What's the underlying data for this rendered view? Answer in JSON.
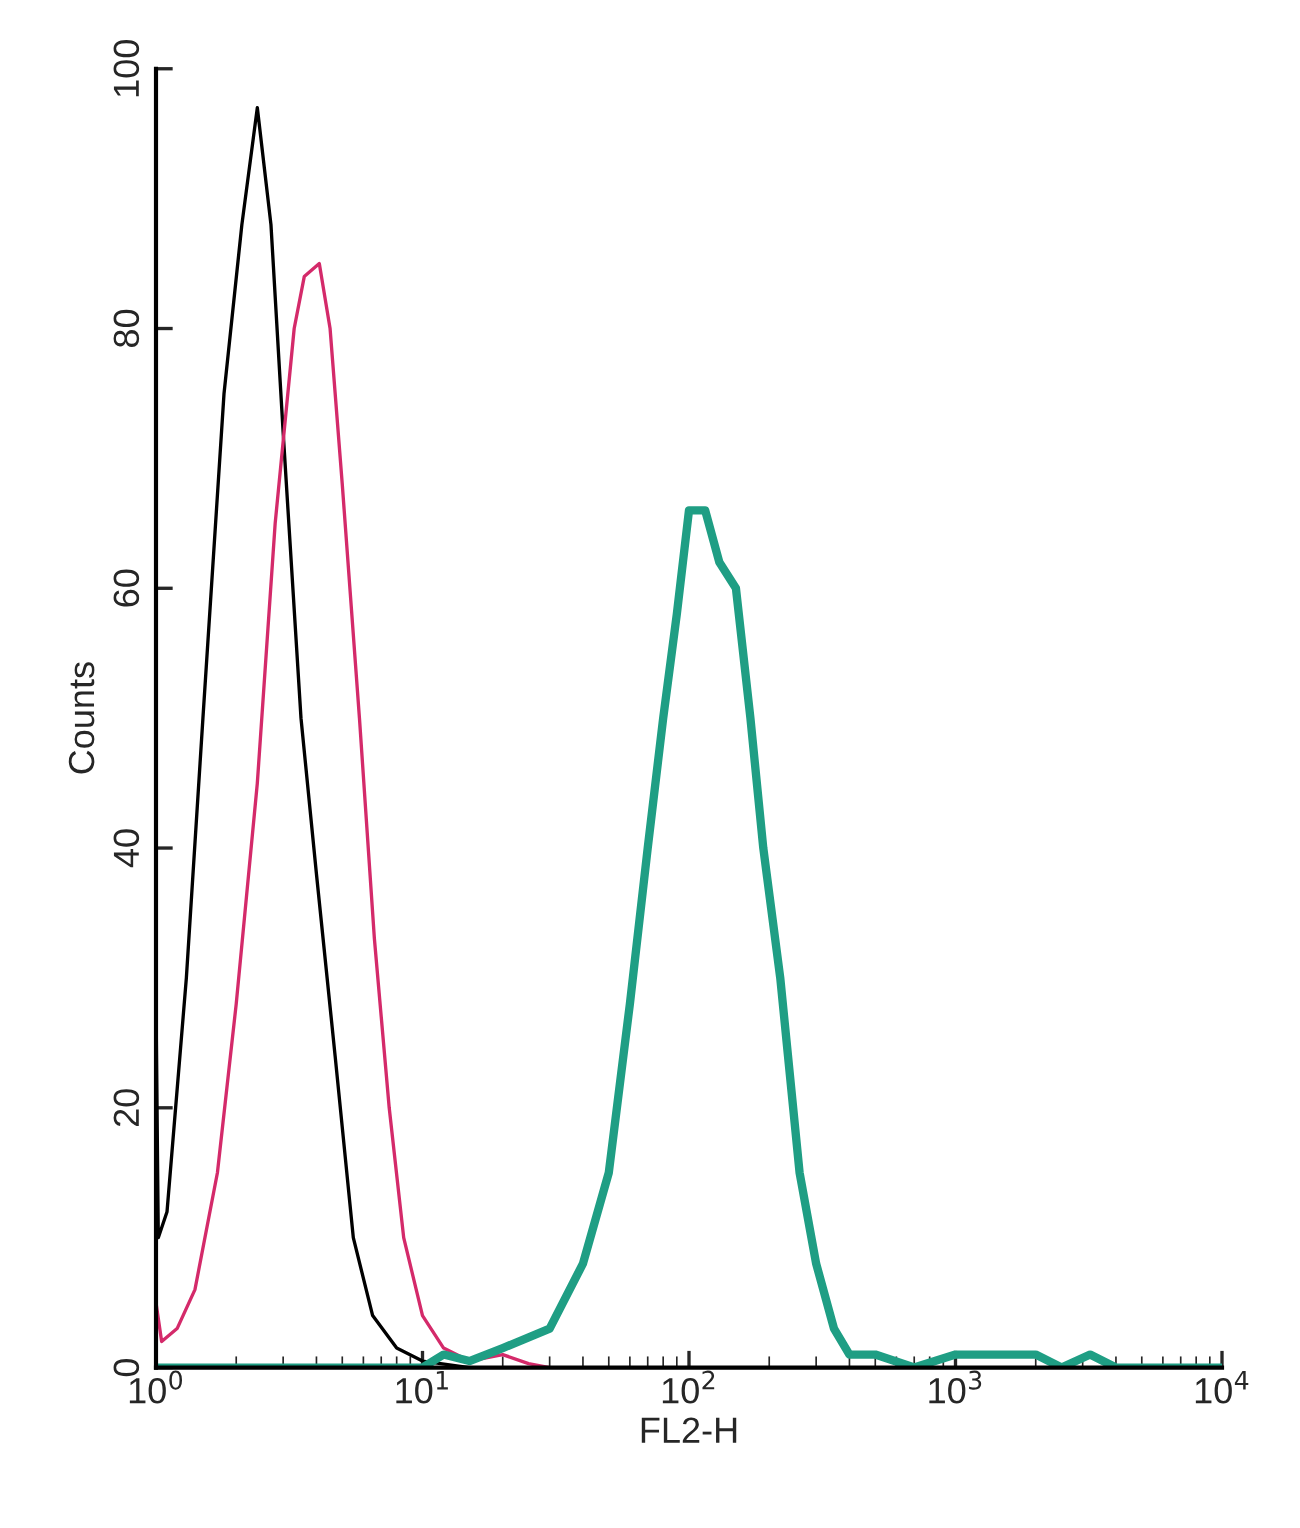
{
  "chart_data": {
    "type": "line",
    "xlabel": "FL2-H",
    "ylabel": "Counts",
    "log": "x",
    "xlim": [
      1,
      10000
    ],
    "xticks": [
      {
        "value": 1,
        "label": "10$^{0}$"
      },
      {
        "value": 10,
        "label": "10$^{1}$"
      },
      {
        "value": 100,
        "label": "10$^{2}$"
      },
      {
        "value": 1000,
        "label": "10$^{3}$"
      },
      {
        "value": 10000,
        "label": "10$^{4}$"
      }
    ],
    "ylim": [
      0,
      100
    ],
    "yticks": [
      0,
      20,
      40,
      60,
      80,
      100
    ],
    "grid": false,
    "series": [
      {
        "color": "#000000",
        "x": [
          1.0,
          1.02,
          1.1,
          1.3,
          1.5,
          1.8,
          2.1,
          2.4,
          2.7,
          3.0,
          3.5,
          4.0,
          4.7,
          5.5,
          6.5,
          8,
          10,
          15,
          100,
          10000
        ],
        "values": [
          28,
          10,
          12,
          30,
          50,
          75,
          88,
          97,
          88,
          72,
          50,
          38,
          24,
          10,
          4,
          1.5,
          0.5,
          0,
          0,
          0
        ]
      },
      {
        "color": "#d42a6a",
        "x": [
          1.0,
          1.05,
          1.2,
          1.4,
          1.7,
          2.0,
          2.4,
          2.8,
          3.3,
          3.6,
          4.1,
          4.5,
          5.0,
          5.8,
          6.6,
          7.5,
          8.5,
          10,
          12,
          15,
          20,
          25,
          30,
          10000
        ],
        "values": [
          5,
          2,
          3,
          6,
          15,
          28,
          45,
          65,
          80,
          84,
          85,
          80,
          68,
          50,
          33,
          20,
          10,
          4,
          1.5,
          0.5,
          1,
          0.3,
          0,
          0
        ]
      },
      {
        "color": "#1f9e84",
        "x": [
          1,
          10,
          12,
          15,
          20,
          30,
          40,
          50,
          60,
          70,
          80,
          90,
          100,
          115,
          130,
          150,
          170,
          190,
          220,
          260,
          300,
          350,
          400,
          500,
          700,
          1000,
          2000,
          2500,
          3200,
          4000,
          10000
        ],
        "values": [
          0,
          0,
          1,
          0.5,
          1.5,
          3,
          8,
          15,
          28,
          40,
          50,
          58,
          66,
          66,
          62,
          60,
          50,
          40,
          30,
          15,
          8,
          3,
          1,
          1,
          0,
          1,
          1,
          0,
          1,
          0,
          0
        ]
      }
    ]
  }
}
